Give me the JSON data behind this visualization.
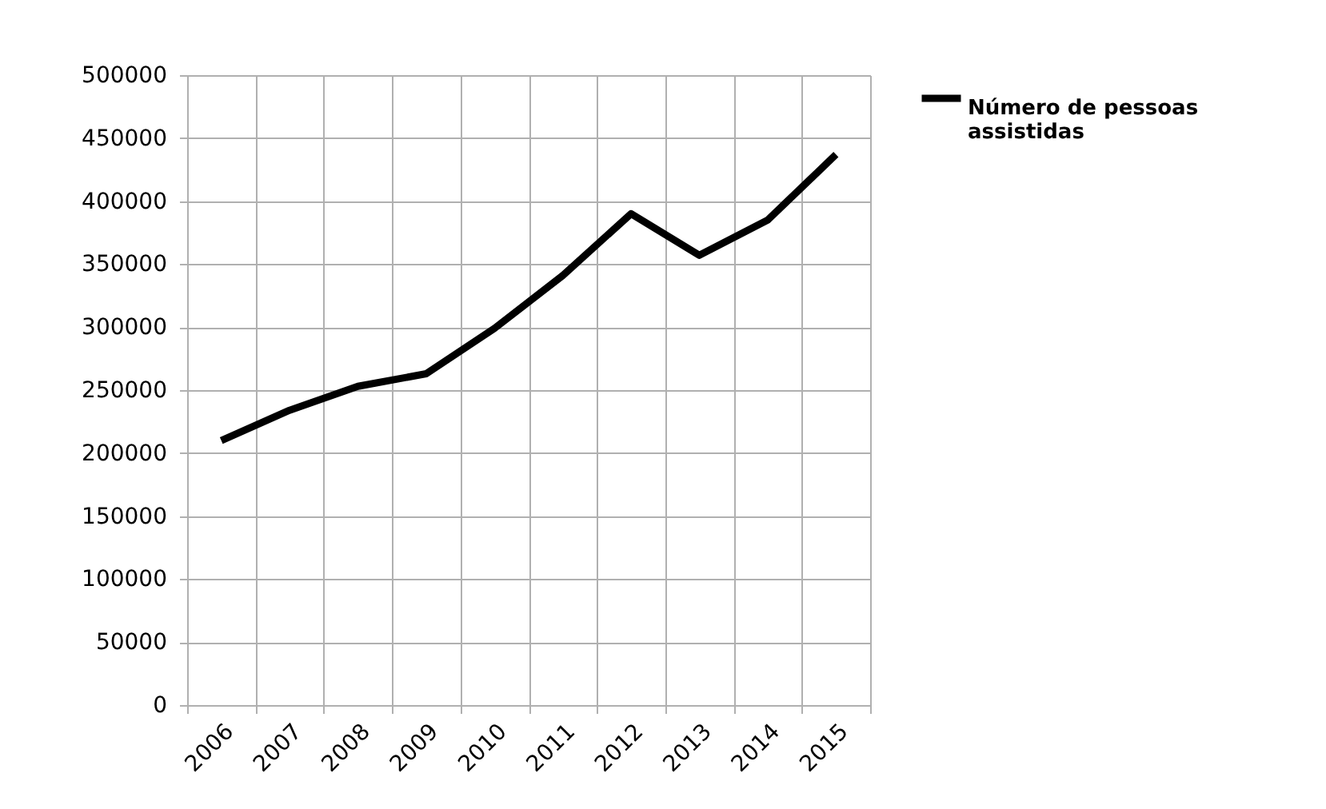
{
  "chart_data": {
    "type": "line",
    "categories": [
      "2006",
      "2007",
      "2008",
      "2009",
      "2010",
      "2011",
      "2012",
      "2013",
      "2014",
      "2015"
    ],
    "series": [
      {
        "name": "Número de pessoas assistidas",
        "color": "#000000",
        "values": [
          210000,
          234000,
          253000,
          263000,
          299000,
          341000,
          390000,
          357000,
          385000,
          437000
        ]
      }
    ],
    "ylim": [
      0,
      500000
    ],
    "yticks": [
      0,
      50000,
      100000,
      150000,
      200000,
      250000,
      300000,
      350000,
      400000,
      450000,
      500000
    ],
    "grid": true,
    "legend": "right",
    "marker": "none",
    "line_style": "solid"
  }
}
